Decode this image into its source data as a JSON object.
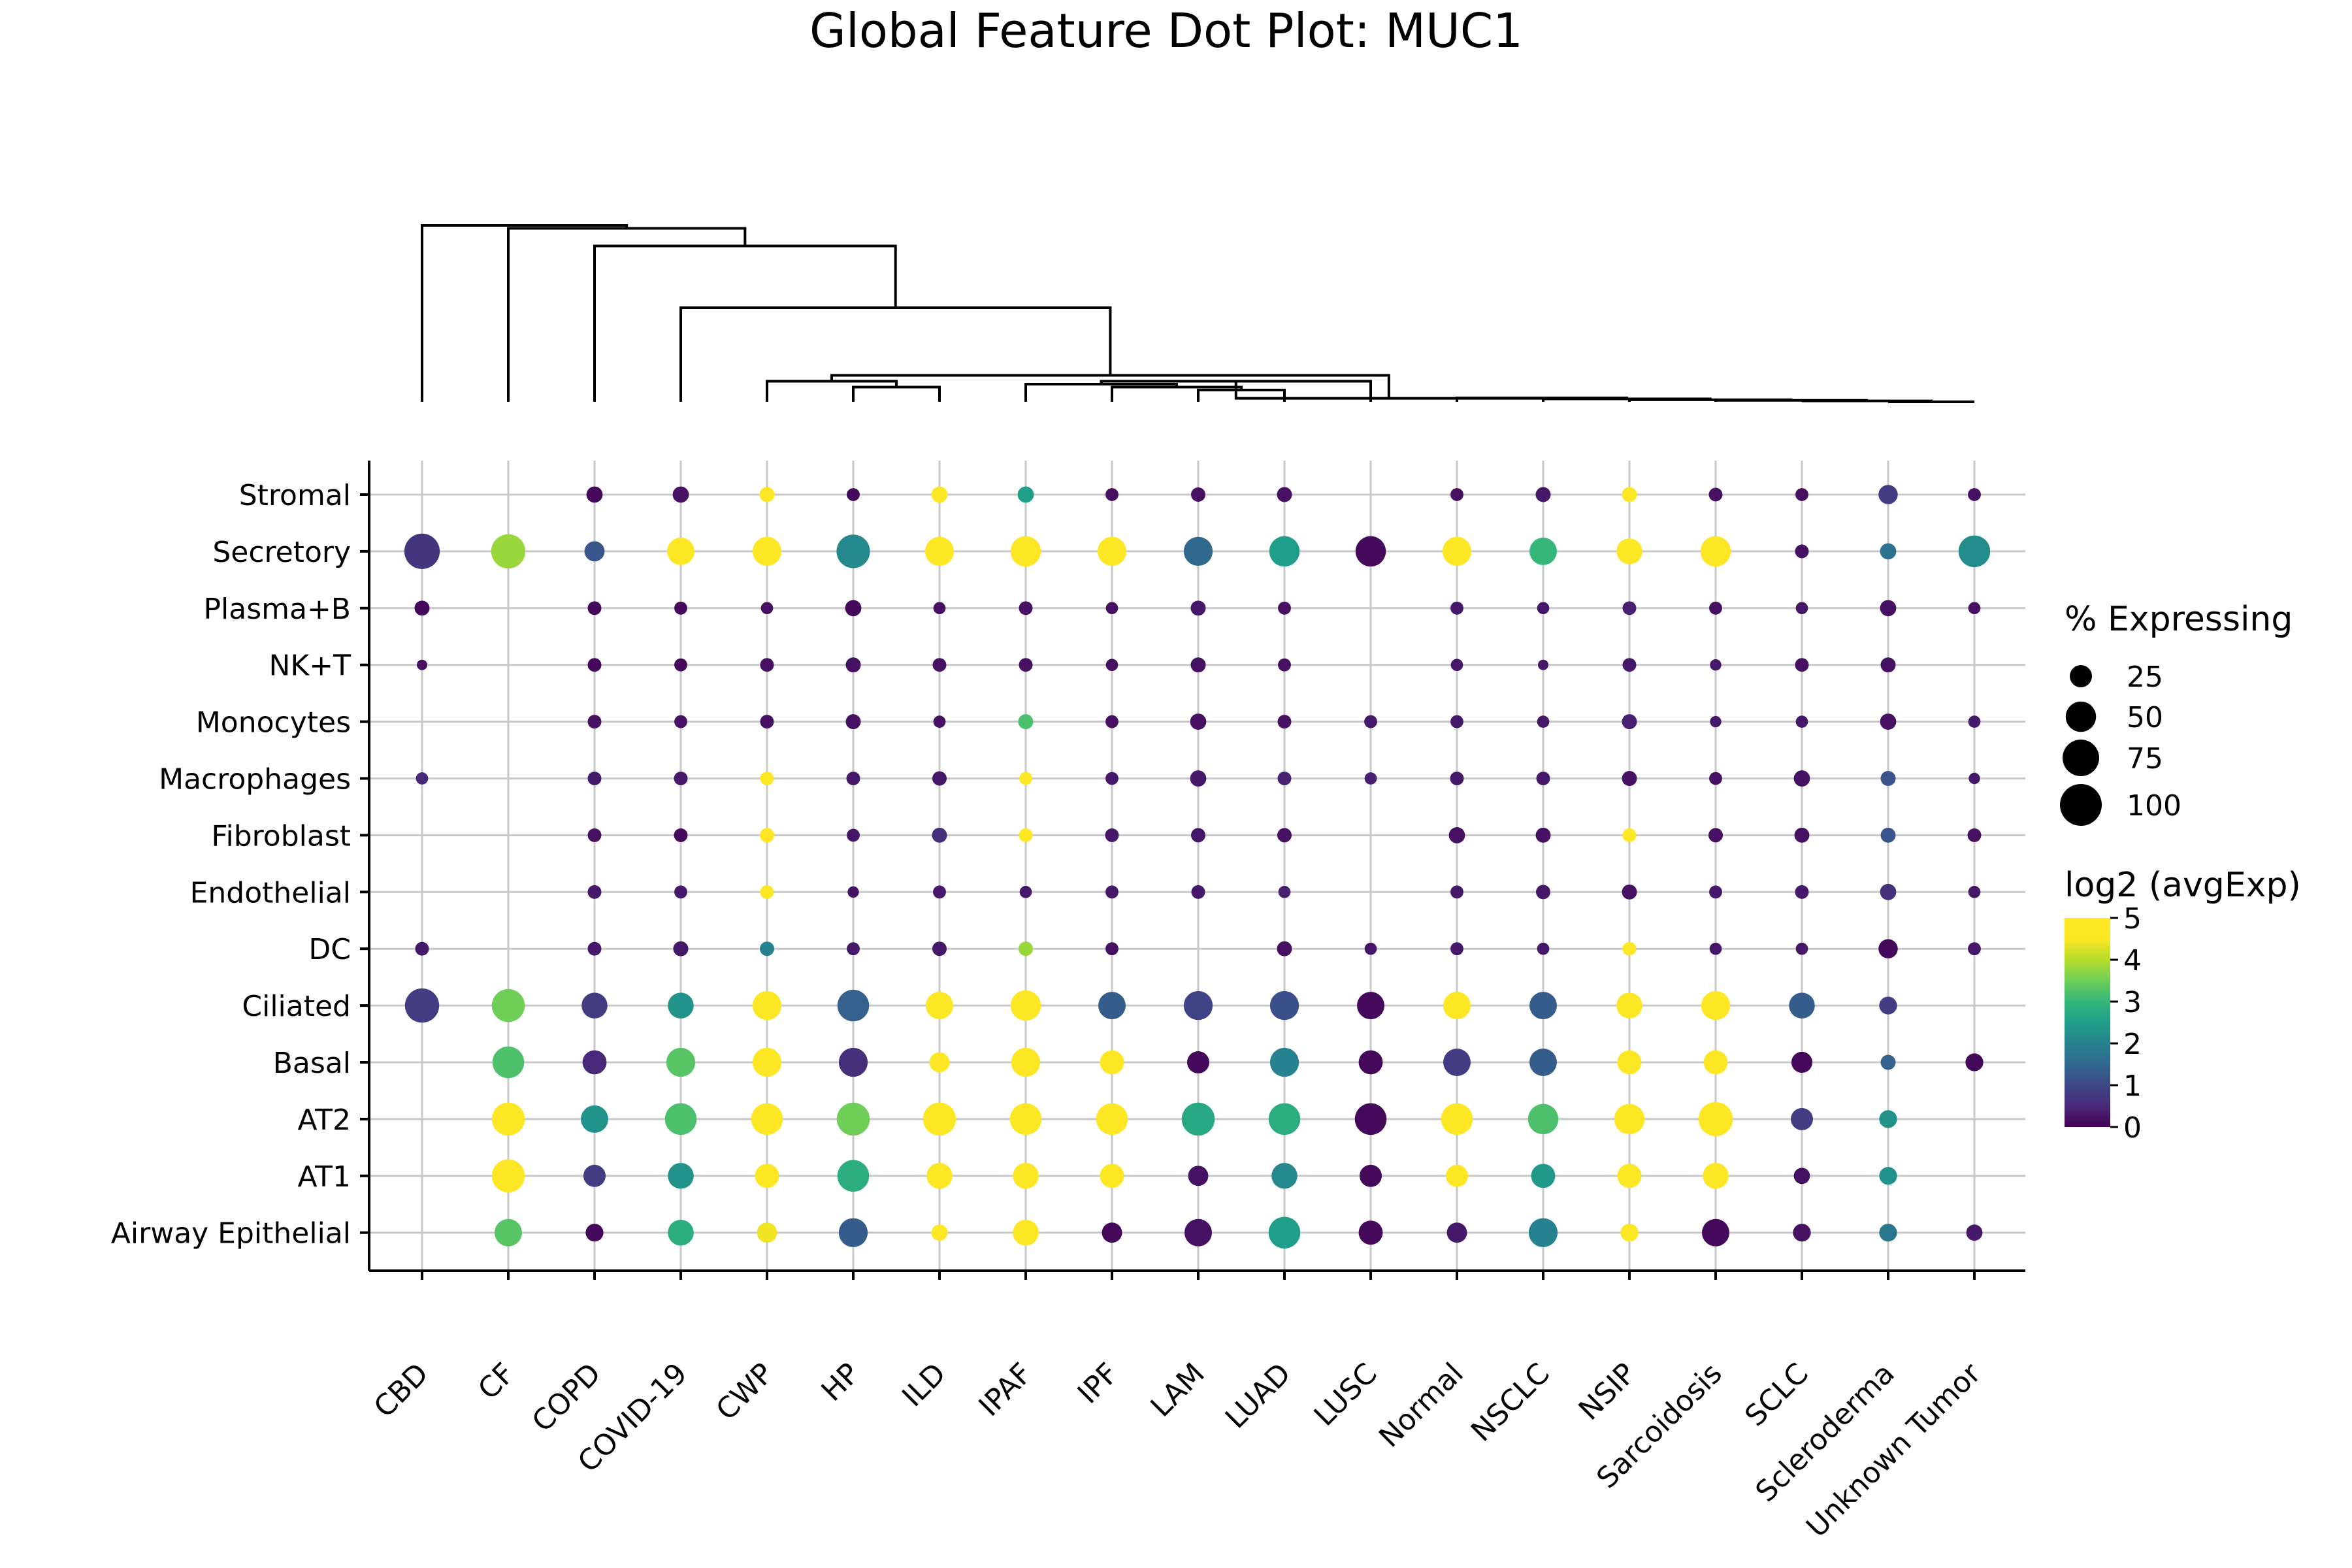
{
  "chart_data": {
    "type": "dot",
    "title": "Global Feature Dot Plot: MUC1",
    "xlabel": "",
    "ylabel": "",
    "grid": true,
    "colormap": "viridis",
    "categories": [
      "CBD",
      "CF",
      "COPD",
      "COVID-19",
      "CWP",
      "HP",
      "ILD",
      "IPAF",
      "IPF",
      "LAM",
      "LUAD",
      "LUSC",
      "Normal",
      "NSCLC",
      "NSIP",
      "Sarcoidosis",
      "SCLC",
      "Scleroderma",
      "Unknown Tumor"
    ],
    "rows": [
      "Stromal",
      "Secretory",
      "Plasma+B",
      "NK+T",
      "Monocytes",
      "Macrophages",
      "Fibroblast",
      "Endothelial",
      "DC",
      "Ciliated",
      "Basal",
      "AT2",
      "AT1",
      "Airway Epithelial"
    ],
    "size_legend": {
      "title": "% Expressing",
      "values": [
        25,
        50,
        75,
        100
      ],
      "labels": [
        "25",
        "50",
        "75",
        "100"
      ],
      "placement": "right"
    },
    "color_legend": {
      "title": "log2 (avgExp)",
      "range": [
        0,
        5
      ],
      "ticks": [
        "0",
        "1",
        "2",
        "3",
        "4",
        "5"
      ],
      "placement": "right"
    },
    "pct_expressing": [
      [
        null,
        null,
        12,
        12,
        10,
        7,
        12,
        12,
        7,
        9,
        10,
        null,
        7,
        10,
        10,
        8,
        7,
        18,
        7
      ],
      [
        70,
        65,
        20,
        40,
        45,
        62,
        45,
        50,
        45,
        45,
        50,
        50,
        45,
        40,
        35,
        50,
        8,
        12,
        55
      ],
      [
        10,
        null,
        8,
        7,
        6,
        12,
        6,
        8,
        6,
        10,
        7,
        null,
        7,
        6,
        8,
        7,
        6,
        12,
        6
      ],
      [
        4,
        null,
        8,
        7,
        8,
        10,
        8,
        8,
        6,
        10,
        7,
        null,
        6,
        4,
        8,
        5,
        8,
        10,
        null
      ],
      [
        null,
        null,
        8,
        7,
        8,
        10,
        6,
        10,
        7,
        12,
        8,
        7,
        7,
        6,
        10,
        5,
        6,
        12,
        6
      ],
      [
        6,
        null,
        8,
        8,
        8,
        8,
        9,
        7,
        7,
        12,
        8,
        6,
        8,
        8,
        10,
        7,
        12,
        10,
        5
      ],
      [
        null,
        null,
        8,
        8,
        9,
        7,
        10,
        8,
        8,
        9,
        9,
        null,
        12,
        10,
        8,
        9,
        10,
        10,
        8
      ],
      [
        null,
        null,
        8,
        7,
        8,
        5,
        7,
        6,
        7,
        8,
        6,
        null,
        7,
        9,
        10,
        7,
        8,
        12,
        6
      ],
      [
        8,
        null,
        8,
        10,
        9,
        7,
        9,
        9,
        7,
        null,
        10,
        6,
        7,
        6,
        8,
        6,
        6,
        18,
        7
      ],
      [
        65,
        60,
        35,
        35,
        45,
        55,
        40,
        50,
        40,
        45,
        45,
        40,
        40,
        40,
        35,
        45,
        35,
        15,
        null
      ],
      [
        null,
        55,
        30,
        45,
        45,
        45,
        20,
        45,
        30,
        25,
        45,
        30,
        40,
        40,
        30,
        30,
        22,
        10,
        15
      ],
      [
        null,
        60,
        40,
        55,
        55,
        60,
        60,
        55,
        55,
        60,
        55,
        55,
        55,
        50,
        50,
        65,
        25,
        15,
        null
      ],
      [
        null,
        60,
        25,
        35,
        30,
        55,
        35,
        35,
        30,
        20,
        35,
        25,
        25,
        30,
        30,
        35,
        12,
        15,
        null
      ],
      [
        null,
        40,
        15,
        35,
        20,
        45,
        12,
        35,
        20,
        40,
        55,
        30,
        20,
        45,
        15,
        40,
        15,
        15,
        12
      ]
    ],
    "log2_avg_exp": [
      [
        null,
        null,
        0.1,
        0.2,
        5,
        0.1,
        5,
        2.5,
        0.2,
        0.2,
        0.2,
        null,
        0.2,
        0.3,
        5,
        0.2,
        0.2,
        0.8,
        0.2
      ],
      [
        0.7,
        3.8,
        1.2,
        5,
        5,
        2.1,
        5,
        5,
        5,
        1.5,
        2.5,
        0.1,
        5,
        3,
        5,
        5,
        0.2,
        1.7,
        2.2
      ],
      [
        0.1,
        null,
        0.1,
        0.1,
        0.2,
        0.1,
        0.2,
        0.2,
        0.2,
        0.3,
        0.2,
        null,
        0.3,
        0.3,
        0.4,
        0.2,
        0.3,
        0.2,
        0.2
      ],
      [
        0.2,
        null,
        0.1,
        0.1,
        0.2,
        0.2,
        0.2,
        0.2,
        0.2,
        0.2,
        0.2,
        null,
        0.3,
        0.3,
        0.3,
        0.3,
        0.2,
        0.2,
        null
      ],
      [
        null,
        null,
        0.2,
        0.2,
        0.2,
        0.2,
        0.2,
        3.2,
        0.2,
        0.2,
        0.2,
        0.3,
        0.3,
        0.3,
        0.4,
        0.3,
        0.3,
        0.2,
        0.3
      ],
      [
        0.5,
        null,
        0.3,
        0.3,
        5,
        0.3,
        0.3,
        5,
        0.3,
        0.3,
        0.4,
        0.4,
        0.3,
        0.3,
        0.2,
        0.2,
        0.2,
        1.2,
        0.3
      ],
      [
        null,
        null,
        0.2,
        0.1,
        5,
        0.3,
        0.6,
        5,
        0.3,
        0.3,
        0.2,
        null,
        0.2,
        0.2,
        5,
        0.2,
        0.2,
        1.2,
        0.2
      ],
      [
        null,
        null,
        0.3,
        0.3,
        5,
        0.2,
        0.3,
        0.3,
        0.3,
        0.3,
        0.4,
        null,
        0.3,
        0.3,
        0.2,
        0.3,
        0.3,
        0.6,
        0.3
      ],
      [
        0.3,
        null,
        0.3,
        0.3,
        2,
        0.3,
        0.3,
        3.8,
        0.2,
        null,
        0.2,
        0.3,
        0.3,
        0.3,
        5,
        0.3,
        0.3,
        0.1,
        0.3
      ],
      [
        0.8,
        3.5,
        0.8,
        2.3,
        5,
        1.4,
        5,
        5,
        1.3,
        0.9,
        1.1,
        0.1,
        5,
        1.3,
        5,
        5,
        1.3,
        0.8,
        null
      ],
      [
        null,
        3.2,
        0.5,
        3.3,
        5,
        0.6,
        5,
        5,
        4.6,
        0.1,
        2,
        0.1,
        0.8,
        1.3,
        5,
        5,
        0.1,
        1.4,
        0.1
      ],
      [
        null,
        4.5,
        2.3,
        3.2,
        5,
        3.5,
        5,
        5,
        5,
        2.7,
        2.8,
        0.1,
        5,
        3.2,
        5,
        5,
        0.8,
        2.3,
        null
      ],
      [
        null,
        4.6,
        0.8,
        2.3,
        5,
        2.8,
        5,
        5,
        5,
        0.2,
        2.1,
        0.1,
        5,
        2.4,
        5,
        5,
        0.2,
        2.3,
        null
      ],
      [
        null,
        3.3,
        0.1,
        2.8,
        4.4,
        1.3,
        5,
        5,
        0.1,
        0.2,
        2.5,
        0.1,
        0.3,
        2,
        5,
        0.1,
        0.2,
        1.8,
        0.3
      ]
    ]
  }
}
